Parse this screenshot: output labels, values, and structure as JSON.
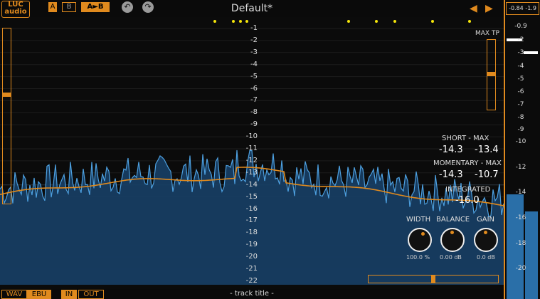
{
  "header": {
    "logo_line1": "LUC",
    "logo_line2": "audio",
    "btn_a": "A",
    "btn_b": "B",
    "btn_ab": "A►B",
    "undo_icon": "↶",
    "redo_icon": "↷",
    "preset_name": "Default*",
    "prev_icon": "◀",
    "next_icon": "▶"
  },
  "scale": [
    "-1",
    "-2",
    "-3",
    "-4",
    "-5",
    "-6",
    "-7",
    "-8",
    "-9",
    "-10",
    "-11",
    "-12",
    "-13",
    "-14",
    "-15",
    "-16",
    "-17",
    "-18",
    "-19",
    "-20",
    "-21",
    "-22"
  ],
  "max_tp": {
    "label": "MAX TP",
    "level": 0.5
  },
  "left_level": 0.62,
  "readouts": {
    "short_label": "SHORT - MAX",
    "short_val": "-14.3",
    "short_max": "-13.4",
    "momentary_label": "MOMENTARY - MAX",
    "momentary_val": "-14.3",
    "momentary_max": "-10.7",
    "integrated_label": "INTEGRATED",
    "integrated_val": "-16.0"
  },
  "knobs": [
    {
      "label": "WIDTH",
      "value": "100.0 %"
    },
    {
      "label": "BALANCE",
      "value": "0.00 dB"
    },
    {
      "label": "GAIN",
      "value": "0.0 dB"
    }
  ],
  "bottom": {
    "wav": "WAV",
    "ebu": "EBU",
    "in": "IN",
    "out": "OUT",
    "track_title": "- track title -"
  },
  "meter": {
    "peak_left": "-0.84",
    "peak_right": "-1.9",
    "scale": [
      "-0.9",
      "-2",
      "-3",
      "-4",
      "-5",
      "-6",
      "-7",
      "-8",
      "-9",
      "-10",
      "-12",
      "-14",
      "-16",
      "-18",
      "-20"
    ],
    "level_left": 0.37,
    "level_right": 0.31
  },
  "colors": {
    "accent": "#e08a1e",
    "fill": "#1c4d78",
    "line": "#4da0e0",
    "loudness": "#e08a1e"
  }
}
